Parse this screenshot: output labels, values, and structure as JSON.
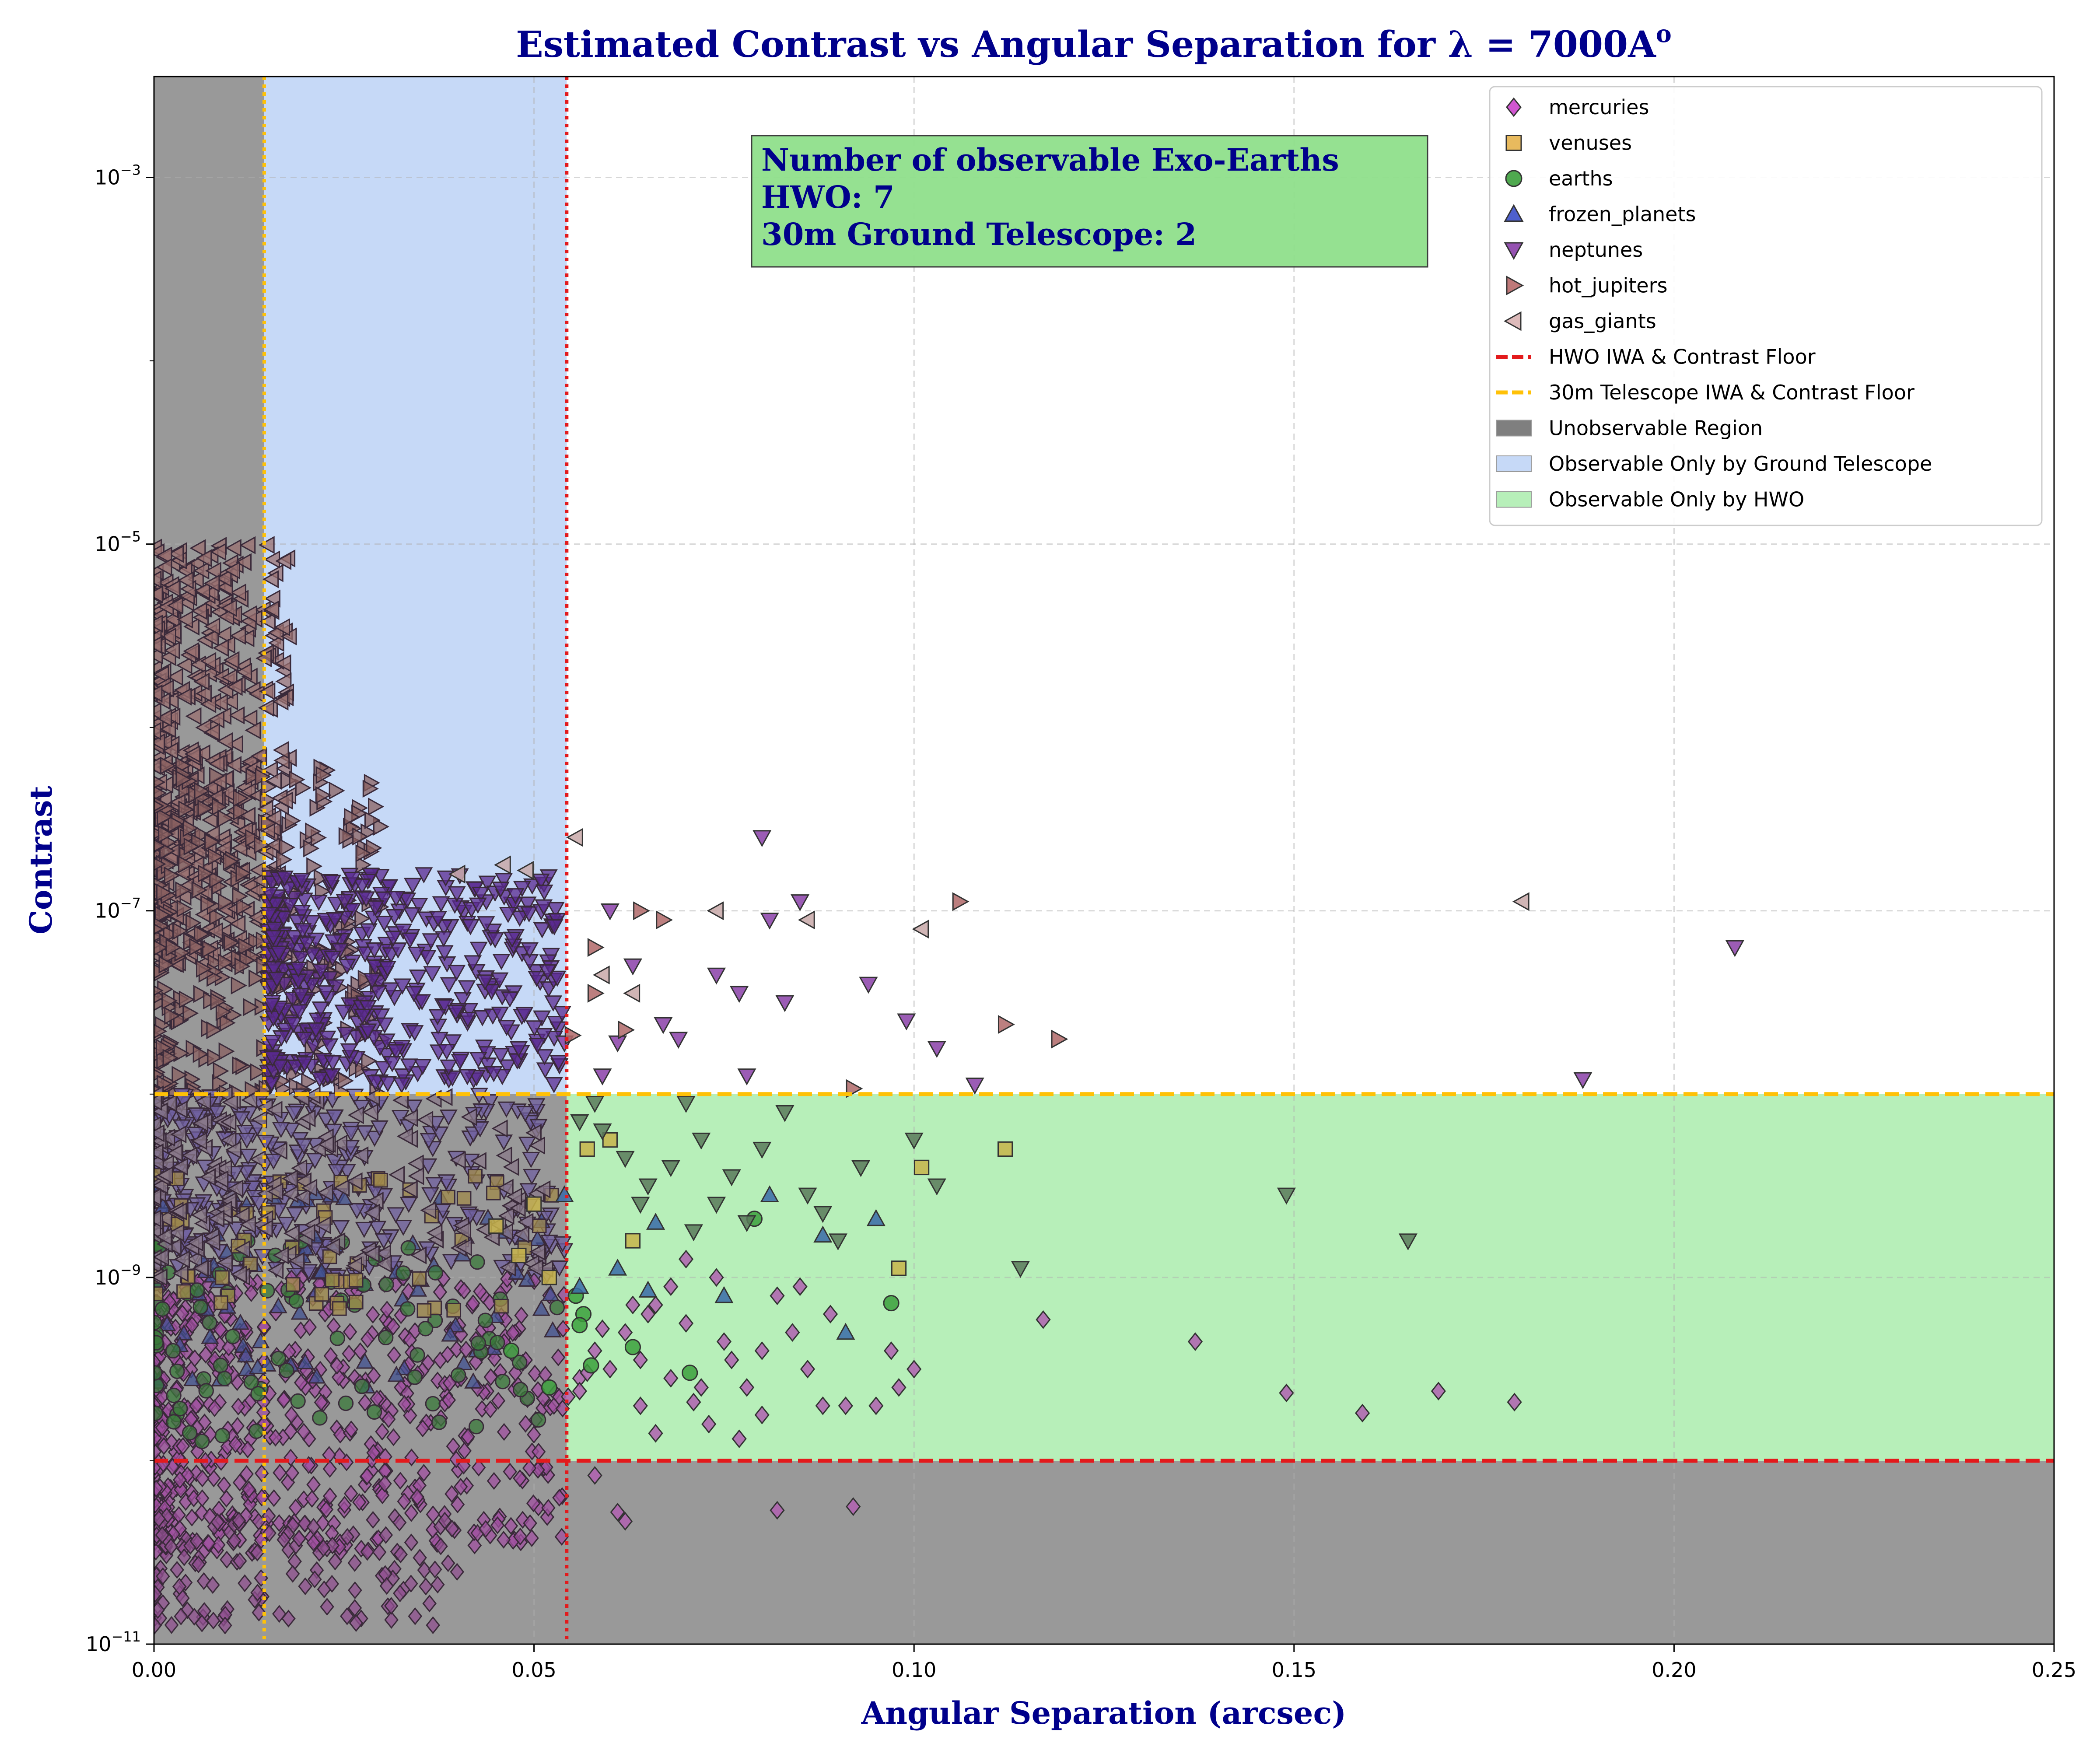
{
  "chart_data": {
    "type": "scatter",
    "title": "Estimated Contrast vs Angular Separation for λ = 7000A",
    "title_superscript": "o",
    "xlabel": "Angular Separation (arcsec)",
    "ylabel": "Contrast",
    "xlim": [
      0.0,
      0.25
    ],
    "ylim_log10": [
      -11,
      -2.45
    ],
    "y_scale": "log",
    "grid": true,
    "x_ticks": [
      {
        "value": 0.0,
        "label": "0.00"
      },
      {
        "value": 0.05,
        "label": "0.05"
      },
      {
        "value": 0.1,
        "label": "0.10"
      },
      {
        "value": 0.15,
        "label": "0.15"
      },
      {
        "value": 0.2,
        "label": "0.20"
      },
      {
        "value": 0.25,
        "label": "0.25"
      }
    ],
    "y_ticks": [
      {
        "exp": -11,
        "base": "10",
        "sup": "−11"
      },
      {
        "exp": -9,
        "base": "10",
        "sup": "−9"
      },
      {
        "exp": -7,
        "base": "10",
        "sup": "−7"
      },
      {
        "exp": -5,
        "base": "10",
        "sup": "−5"
      },
      {
        "exp": -3,
        "base": "10",
        "sup": "−3"
      }
    ],
    "hwo": {
      "iwa": 0.0543,
      "floor": 1e-10,
      "color": "#e31a1c"
    },
    "ground": {
      "iwa": 0.0145,
      "floor": 1e-08,
      "color": "#ffc107"
    },
    "regions": {
      "unobservable_color": "#7f7f7f",
      "ground_only_color": "#c6d9f7",
      "hwo_only_color": "#b7efb9"
    },
    "annotation": {
      "lines": [
        "Number of observable Exo-Earths",
        "HWO: 7",
        "30m Ground Telescope: 2"
      ],
      "bg_color": "#90e08c"
    },
    "legend_position": "top-right",
    "legend": [
      {
        "label": "mercuries",
        "kind": "marker",
        "marker": "diamond",
        "color": "#cc44cc"
      },
      {
        "label": "venuses",
        "kind": "marker",
        "marker": "square",
        "color": "#e6b34d"
      },
      {
        "label": "earths",
        "kind": "marker",
        "marker": "circle",
        "color": "#3ca03c"
      },
      {
        "label": "frozen_planets",
        "kind": "marker",
        "marker": "tri-up",
        "color": "#3b4fc8"
      },
      {
        "label": "neptunes",
        "kind": "marker",
        "marker": "tri-down",
        "color": "#8a3fa8"
      },
      {
        "label": "hot_jupiters",
        "kind": "marker",
        "marker": "tri-right",
        "color": "#b86a6a"
      },
      {
        "label": "gas_giants",
        "kind": "marker",
        "marker": "tri-left",
        "color": "#d9b3b3"
      },
      {
        "label": "HWO IWA & Contrast Floor",
        "kind": "line",
        "color": "#e31a1c"
      },
      {
        "label": "30m Telescope IWA & Contrast Floor",
        "kind": "line",
        "color": "#ffc107"
      },
      {
        "label": "Unobservable Region",
        "kind": "patch",
        "color": "#7f7f7f"
      },
      {
        "label": "Observable Only by Ground Telescope",
        "kind": "patch",
        "color": "#c6d9f7"
      },
      {
        "label": "Observable Only by HWO",
        "kind": "patch",
        "color": "#b7efb9"
      }
    ],
    "series": [
      {
        "name": "mercuries",
        "marker": "diamond",
        "color": "#b060b0",
        "points": [
          [
            0.0545,
            -9.65
          ],
          [
            0.056,
            -9.55
          ],
          [
            0.058,
            -9.4
          ],
          [
            0.06,
            -9.5
          ],
          [
            0.062,
            -9.3
          ],
          [
            0.064,
            -9.7
          ],
          [
            0.066,
            -9.85
          ],
          [
            0.068,
            -9.55
          ],
          [
            0.07,
            -9.25
          ],
          [
            0.072,
            -9.6
          ],
          [
            0.074,
            -9.0
          ],
          [
            0.076,
            -9.45
          ],
          [
            0.078,
            -9.6
          ],
          [
            0.08,
            -9.75
          ],
          [
            0.082,
            -9.1
          ],
          [
            0.084,
            -9.3
          ],
          [
            0.086,
            -9.5
          ],
          [
            0.088,
            -9.7
          ],
          [
            0.091,
            -9.7
          ],
          [
            0.092,
            -10.25
          ],
          [
            0.095,
            -9.7
          ],
          [
            0.097,
            -9.4
          ],
          [
            0.098,
            -9.6
          ],
          [
            0.1,
            -9.5
          ],
          [
            0.117,
            -9.23
          ],
          [
            0.137,
            -9.35
          ],
          [
            0.149,
            -9.63
          ],
          [
            0.159,
            -9.74
          ],
          [
            0.169,
            -9.62
          ],
          [
            0.179,
            -9.68
          ],
          [
            0.082,
            -10.27
          ],
          [
            0.058,
            -10.08
          ],
          [
            0.061,
            -10.28
          ],
          [
            0.065,
            -9.2
          ],
          [
            0.07,
            -8.9
          ],
          [
            0.063,
            -9.15
          ],
          [
            0.073,
            -9.8
          ],
          [
            0.077,
            -9.88
          ],
          [
            0.085,
            -9.05
          ],
          [
            0.062,
            -10.33
          ],
          [
            0.068,
            -9.05
          ],
          [
            0.059,
            -9.28
          ],
          [
            0.056,
            -9.62
          ],
          [
            0.075,
            -9.35
          ],
          [
            0.08,
            -9.4
          ],
          [
            0.057,
            -9.52
          ],
          [
            0.064,
            -9.45
          ],
          [
            0.066,
            -9.15
          ],
          [
            0.071,
            -9.68
          ],
          [
            0.089,
            -9.2
          ]
        ]
      },
      {
        "name": "venuses",
        "marker": "square",
        "color": "#c8b44a",
        "points": [
          [
            0.057,
            -8.3
          ],
          [
            0.06,
            -8.25
          ],
          [
            0.063,
            -8.8
          ],
          [
            0.098,
            -8.95
          ],
          [
            0.101,
            -8.4
          ],
          [
            0.112,
            -8.3
          ],
          [
            0.045,
            -8.72
          ],
          [
            0.048,
            -8.88
          ],
          [
            0.052,
            -9.0
          ],
          [
            0.05,
            -8.6
          ]
        ]
      },
      {
        "name": "earths",
        "marker": "circle",
        "color": "#3ca03c",
        "points": [
          [
            0.0555,
            -9.1
          ],
          [
            0.0565,
            -9.2
          ],
          [
            0.0575,
            -9.48
          ],
          [
            0.063,
            -9.38
          ],
          [
            0.0705,
            -9.52
          ],
          [
            0.079,
            -8.68
          ],
          [
            0.097,
            -9.14
          ],
          [
            0.056,
            -9.26
          ],
          [
            0.052,
            -9.6
          ],
          [
            0.047,
            -9.4
          ]
        ]
      },
      {
        "name": "frozen_planets",
        "marker": "tri-up",
        "color": "#3a6aa8",
        "points": [
          [
            0.056,
            -9.05
          ],
          [
            0.065,
            -9.07
          ],
          [
            0.066,
            -8.7
          ],
          [
            0.075,
            -9.1
          ],
          [
            0.081,
            -8.55
          ],
          [
            0.088,
            -8.77
          ],
          [
            0.091,
            -9.3
          ],
          [
            0.095,
            -8.68
          ],
          [
            0.054,
            -8.55
          ],
          [
            0.061,
            -8.95
          ]
        ]
      },
      {
        "name": "neptunes",
        "marker": "tri-down",
        "color": "#8a3fa8",
        "points": [
          [
            0.06,
            -7.0
          ],
          [
            0.063,
            -7.3
          ],
          [
            0.067,
            -7.62
          ],
          [
            0.069,
            -7.7
          ],
          [
            0.074,
            -7.35
          ],
          [
            0.077,
            -7.45
          ],
          [
            0.08,
            -6.6
          ],
          [
            0.081,
            -7.05
          ],
          [
            0.083,
            -7.5
          ],
          [
            0.085,
            -6.95
          ],
          [
            0.094,
            -7.4
          ],
          [
            0.099,
            -7.6
          ],
          [
            0.103,
            -7.75
          ],
          [
            0.108,
            -7.95
          ],
          [
            0.188,
            -7.92
          ],
          [
            0.208,
            -7.2
          ],
          [
            0.059,
            -7.9
          ],
          [
            0.061,
            -7.72
          ],
          [
            0.078,
            -7.9
          ],
          [
            0.054,
            -7.72
          ]
        ]
      },
      {
        "name": "neptunes_floor",
        "marker": "tri-down",
        "color": "#5a7a5a",
        "points": [
          [
            0.056,
            -8.15
          ],
          [
            0.059,
            -8.2
          ],
          [
            0.062,
            -8.35
          ],
          [
            0.065,
            -8.5
          ],
          [
            0.068,
            -8.4
          ],
          [
            0.07,
            -8.05
          ],
          [
            0.072,
            -8.25
          ],
          [
            0.074,
            -8.6
          ],
          [
            0.076,
            -8.45
          ],
          [
            0.078,
            -8.7
          ],
          [
            0.08,
            -8.3
          ],
          [
            0.083,
            -8.1
          ],
          [
            0.086,
            -8.55
          ],
          [
            0.09,
            -8.8
          ],
          [
            0.093,
            -8.4
          ],
          [
            0.1,
            -8.25
          ],
          [
            0.103,
            -8.5
          ],
          [
            0.114,
            -8.95
          ],
          [
            0.149,
            -8.55
          ],
          [
            0.165,
            -8.8
          ],
          [
            0.058,
            -8.05
          ],
          [
            0.064,
            -8.6
          ],
          [
            0.071,
            -8.75
          ],
          [
            0.088,
            -8.65
          ]
        ]
      },
      {
        "name": "hot_jupiters",
        "marker": "tri-right",
        "color": "#b06868",
        "points": [
          [
            0.058,
            -7.2
          ],
          [
            0.064,
            -7.0
          ],
          [
            0.067,
            -7.05
          ],
          [
            0.106,
            -6.95
          ],
          [
            0.112,
            -7.62
          ],
          [
            0.119,
            -7.7
          ],
          [
            0.092,
            -7.97
          ],
          [
            0.055,
            -7.68
          ],
          [
            0.062,
            -7.65
          ],
          [
            0.058,
            -7.45
          ]
        ]
      },
      {
        "name": "gas_giants",
        "marker": "tri-left",
        "color": "#c8a8a8",
        "points": [
          [
            0.0555,
            -6.6
          ],
          [
            0.074,
            -7.0
          ],
          [
            0.086,
            -7.05
          ],
          [
            0.101,
            -7.1
          ],
          [
            0.18,
            -6.95
          ],
          [
            0.059,
            -7.35
          ],
          [
            0.063,
            -7.45
          ],
          [
            0.049,
            -6.78
          ],
          [
            0.046,
            -6.75
          ],
          [
            0.04,
            -6.8
          ]
        ]
      }
    ]
  }
}
